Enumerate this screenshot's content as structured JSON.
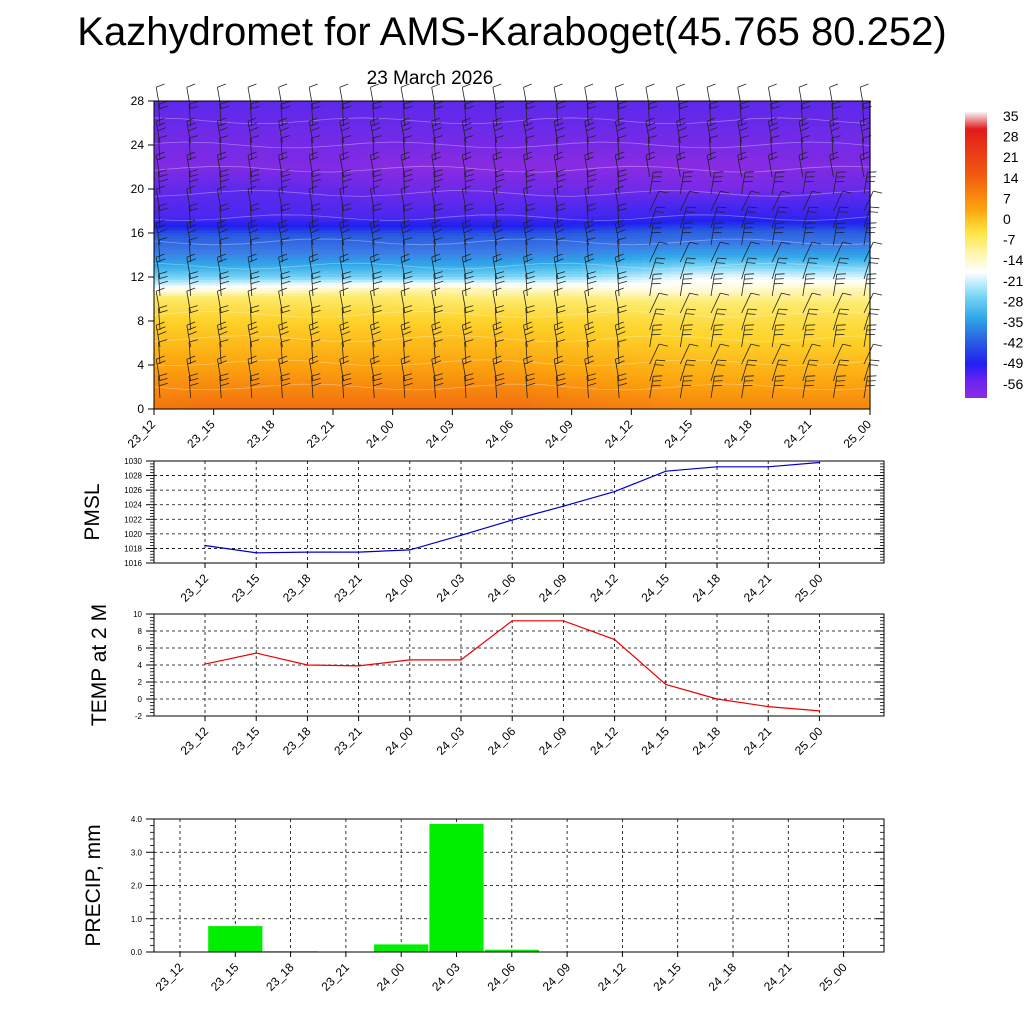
{
  "title": "Kazhydromet for AMS-Karaboget(45.765 80.252)",
  "subtitle": "23 March 2026",
  "time_labels": [
    "23_12",
    "23_15",
    "23_18",
    "23_21",
    "24_00",
    "24_03",
    "24_06",
    "24_09",
    "24_12",
    "24_15",
    "24_18",
    "24_21",
    "25_00"
  ],
  "chart_data": [
    {
      "type": "heatmap",
      "name": "vertical-cross-section",
      "title": "23 March 2026",
      "x": [
        "23_12",
        "23_15",
        "23_18",
        "23_21",
        "24_00",
        "24_03",
        "24_06",
        "24_09",
        "24_12",
        "24_15",
        "24_18",
        "24_21",
        "25_00"
      ],
      "ylim": [
        0,
        28
      ],
      "yticks": [
        0,
        4,
        8,
        12,
        16,
        20,
        24,
        28
      ],
      "colorbar_labels": [
        "35",
        "28",
        "21",
        "14",
        "7",
        "0",
        "-7",
        "-14",
        "-21",
        "-28",
        "-35",
        "-42",
        "-49",
        "-56"
      ],
      "colorbar_range": [
        -63,
        35
      ],
      "temperature_levels": [
        {
          "level": 0,
          "values": [
            13,
            14,
            14,
            14,
            14,
            14,
            14,
            13,
            12,
            11,
            11,
            11,
            11
          ]
        },
        {
          "level": 4,
          "values": [
            7,
            7,
            7,
            7,
            7,
            7,
            7,
            6,
            5,
            4,
            4,
            4,
            4
          ]
        },
        {
          "level": 8,
          "values": [
            0,
            0,
            0,
            0,
            0,
            0,
            0,
            -1,
            -2,
            -3,
            -3,
            -3,
            -3
          ]
        },
        {
          "level": 10,
          "values": [
            -6,
            -6,
            -6,
            -6,
            -6,
            -7,
            -7,
            -7,
            -8,
            -8,
            -8,
            -8,
            -8
          ]
        },
        {
          "level": 11,
          "values": [
            -14,
            -13,
            -12,
            -11,
            -10,
            -10,
            -11,
            -11,
            -12,
            -12,
            -11,
            -10,
            -10
          ]
        },
        {
          "level": 12,
          "values": [
            -22,
            -22,
            -22,
            -22,
            -22,
            -22,
            -21,
            -20,
            -18,
            -15,
            -15,
            -16,
            -16
          ]
        },
        {
          "level": 14,
          "values": [
            -33,
            -33,
            -33,
            -33,
            -33,
            -33,
            -33,
            -32,
            -30,
            -28,
            -28,
            -29,
            -29
          ]
        },
        {
          "level": 16,
          "values": [
            -44,
            -44,
            -44,
            -44,
            -44,
            -44,
            -44,
            -43,
            -42,
            -41,
            -41,
            -41,
            -42
          ]
        },
        {
          "level": 17.5,
          "values": [
            -56,
            -56,
            -56,
            -56,
            -56,
            -56,
            -56,
            -55,
            -54,
            -52,
            -52,
            -53,
            -53
          ]
        },
        {
          "level": 20,
          "values": [
            -59,
            -58,
            -58,
            -59,
            -60,
            -60,
            -60,
            -60,
            -60,
            -61,
            -61,
            -60,
            -59
          ]
        },
        {
          "level": 22,
          "values": [
            -62,
            -62,
            -62,
            -62,
            -63,
            -63,
            -63,
            -63,
            -63,
            -63,
            -63,
            -62,
            -62
          ]
        },
        {
          "level": 25,
          "values": [
            -60,
            -60,
            -60,
            -60,
            -60,
            -60,
            -60,
            -60,
            -60,
            -60,
            -60,
            -60,
            -60
          ]
        },
        {
          "level": 28,
          "values": [
            -58,
            -58,
            -58,
            -58,
            -58,
            -58,
            -58,
            -58,
            -58,
            -58,
            -58,
            -58,
            -58
          ]
        }
      ]
    },
    {
      "type": "line",
      "name": "pmsl",
      "ylabel": "PMSL",
      "x": [
        "23_12",
        "23_15",
        "23_18",
        "23_21",
        "24_00",
        "24_03",
        "24_06",
        "24_09",
        "24_12",
        "24_15",
        "24_18",
        "24_21",
        "25_00"
      ],
      "values": [
        1018.4,
        1017.4,
        1017.5,
        1017.5,
        1017.8,
        1019.8,
        1021.9,
        1023.8,
        1025.8,
        1028.6,
        1029.2,
        1029.2,
        1029.8
      ],
      "ylim": [
        1016,
        1030
      ],
      "yticks": [
        1016,
        1018,
        1020,
        1022,
        1024,
        1026,
        1028,
        1030
      ],
      "color": "#0000cc"
    },
    {
      "type": "line",
      "name": "temp-2m",
      "ylabel": "TEMP at 2 M",
      "x": [
        "23_12",
        "23_15",
        "23_18",
        "23_21",
        "24_00",
        "24_03",
        "24_06",
        "24_09",
        "24_12",
        "24_15",
        "24_18",
        "24_21",
        "25_00"
      ],
      "values": [
        4.1,
        5.4,
        4.0,
        3.9,
        4.6,
        4.6,
        9.2,
        9.2,
        7.0,
        1.7,
        0.0,
        -0.9,
        -1.4
      ],
      "ylim": [
        -2,
        10
      ],
      "yticks": [
        -2,
        0,
        2,
        4,
        6,
        8,
        10
      ],
      "color": "#ee0000"
    },
    {
      "type": "bar",
      "name": "precip",
      "ylabel": "PRECIP, mm",
      "categories": [
        "23_12",
        "23_15",
        "23_18",
        "23_21",
        "24_00",
        "24_03",
        "24_06",
        "24_09",
        "24_12",
        "24_15",
        "24_18",
        "24_21",
        "25_00"
      ],
      "values": [
        0.0,
        0.78,
        0.02,
        0.0,
        0.23,
        3.85,
        0.07,
        0.0,
        0.0,
        0.0,
        0.0,
        0.0,
        0.0
      ],
      "ylim": [
        0,
        4
      ],
      "yticks": [
        "0.0",
        "1.0",
        "2.0",
        "3.0",
        "4.0"
      ],
      "color": "#00ee00"
    }
  ]
}
